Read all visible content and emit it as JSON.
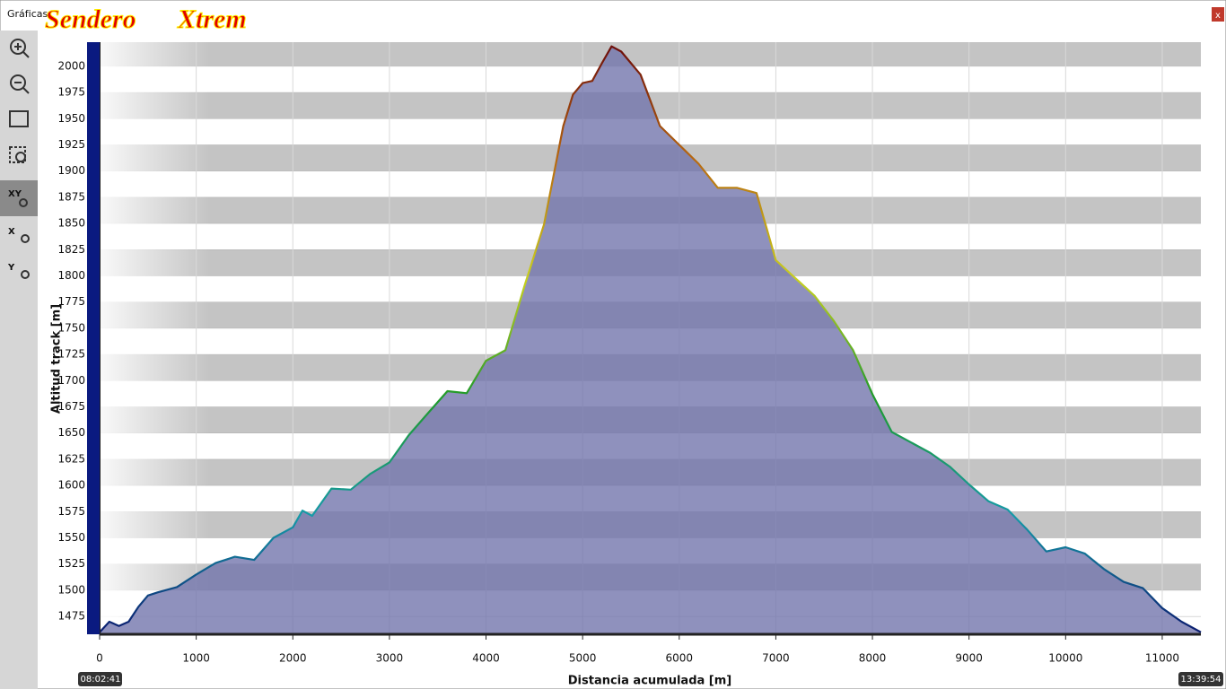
{
  "window": {
    "title": "Gráficas",
    "logo_left": "Sendero",
    "logo_right": "Xtrem",
    "close": "x"
  },
  "time_start": "08:02:41",
  "time_end": "13:39:54",
  "chart_data": {
    "type": "area",
    "x_label": "Distancia acumulada [m]",
    "y_label": "Altitud track [m]",
    "x": [
      0,
      100,
      200,
      300,
      400,
      500,
      600,
      800,
      1000,
      1200,
      1400,
      1600,
      1800,
      2000,
      2100,
      2200,
      2400,
      2600,
      2800,
      3000,
      3200,
      3400,
      3600,
      3800,
      4000,
      4200,
      4400,
      4600,
      4800,
      4900,
      5000,
      5100,
      5200,
      5300,
      5400,
      5600,
      5800,
      6000,
      6200,
      6400,
      6600,
      6800,
      7000,
      7200,
      7400,
      7600,
      7800,
      8000,
      8200,
      8400,
      8600,
      8800,
      9000,
      9200,
      9400,
      9600,
      9800,
      10000,
      10200,
      10400,
      10600,
      10800,
      11000,
      11200,
      11400
    ],
    "values": [
      1460,
      1470,
      1466,
      1470,
      1484,
      1495,
      1498,
      1503,
      1515,
      1526,
      1532,
      1529,
      1550,
      1560,
      1576,
      1571,
      1597,
      1596,
      1611,
      1622,
      1648,
      1669,
      1690,
      1688,
      1719,
      1729,
      1791,
      1849,
      1943,
      1973,
      1984,
      1986,
      2003,
      2019,
      2014,
      1992,
      1943,
      1925,
      1907,
      1884,
      1884,
      1879,
      1815,
      1798,
      1781,
      1757,
      1729,
      1687,
      1651,
      1641,
      1631,
      1618,
      1601,
      1585,
      1577,
      1558,
      1537,
      1541,
      1535,
      1520,
      1508,
      1502,
      1483,
      1470,
      1460
    ],
    "xlim": [
      0,
      11400
    ],
    "ylim": [
      1458,
      2023
    ],
    "xticks": [
      0,
      1000,
      2000,
      3000,
      4000,
      5000,
      6000,
      7000,
      8000,
      9000,
      10000,
      11000
    ],
    "yticks": [
      1475,
      1500,
      1525,
      1550,
      1575,
      1600,
      1625,
      1650,
      1675,
      1700,
      1725,
      1750,
      1775,
      1800,
      1825,
      1850,
      1875,
      1900,
      1925,
      1950,
      1975,
      2000
    ],
    "fill_color": "#7375ad",
    "line_gradient": [
      "#0a1a6e",
      "#169aa8",
      "#1f9a2a",
      "#c8d020",
      "#b86a10",
      "#6a0a0a"
    ],
    "band_color": "#c4c4c4",
    "grid": true
  }
}
